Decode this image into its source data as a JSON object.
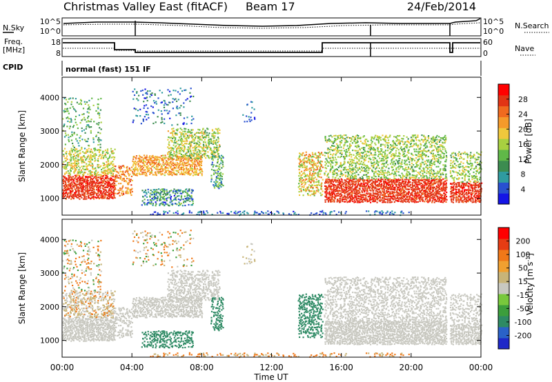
{
  "header": {
    "title": "Christmas Valley East (fitACF)",
    "beam": "Beam 17",
    "date": "24/Feb/2014"
  },
  "top_panels": {
    "nsky_label": "N.Sky",
    "nsky_ticks": [
      "10^5",
      "10^0"
    ],
    "nsearch_label": "N.Search",
    "nsearch_ticks": [
      "10^5",
      "10^0"
    ],
    "freq_label_1": "Freq.",
    "freq_label_2": "[MHz]",
    "freq_ticks": [
      "18",
      "8"
    ],
    "nave_label": "Nave",
    "nave_ticks": [
      "60",
      "0"
    ],
    "cpid_label": "CPID",
    "cpid_value": "normal (fast) 151 IF"
  },
  "chart_data": [
    {
      "type": "heatmap",
      "name": "power",
      "ylabel": "Slant Range [km]",
      "yticks": [
        1000,
        2000,
        3000,
        4000
      ],
      "ylim": [
        500,
        4600
      ],
      "xlim": [
        0,
        24
      ],
      "colorbar_label": "Power [dB]",
      "colorbar_ticks": [
        "4",
        "8",
        "12",
        "16",
        "20",
        "24",
        "28"
      ],
      "colorbar_colors": [
        "#1414e6",
        "#2850d0",
        "#2f9ba0",
        "#3c8c50",
        "#60b848",
        "#a8d040",
        "#f0c83c",
        "#f59a2a",
        "#f06a1e",
        "#e23414",
        "#ff0000"
      ]
    },
    {
      "type": "heatmap",
      "name": "velocity",
      "ylabel": "Slant Range [km]",
      "yticks": [
        1000,
        2000,
        3000,
        4000
      ],
      "ylim": [
        500,
        4600
      ],
      "xlim": [
        0,
        24
      ],
      "colorbar_label": "Velocity [m s",
      "colorbar_label_sup": "-1",
      "colorbar_label_end": "]",
      "colorbar_ticks": [
        "200",
        "100",
        "50",
        "15",
        "-15",
        "-50",
        "-100",
        "-200"
      ],
      "colorbar_colors": [
        "#1e28c8",
        "#2a62c8",
        "#2e8a64",
        "#3c9e3c",
        "#78c83c",
        "#c8c8c0",
        "#c8b478",
        "#f0a030",
        "#f07818",
        "#e63c14",
        "#ff0000"
      ]
    }
  ],
  "x_axis": {
    "ticks": [
      "00:00",
      "04:00",
      "08:00",
      "12:00",
      "16:00",
      "20:00",
      "00:00"
    ],
    "label": "Time UT"
  }
}
